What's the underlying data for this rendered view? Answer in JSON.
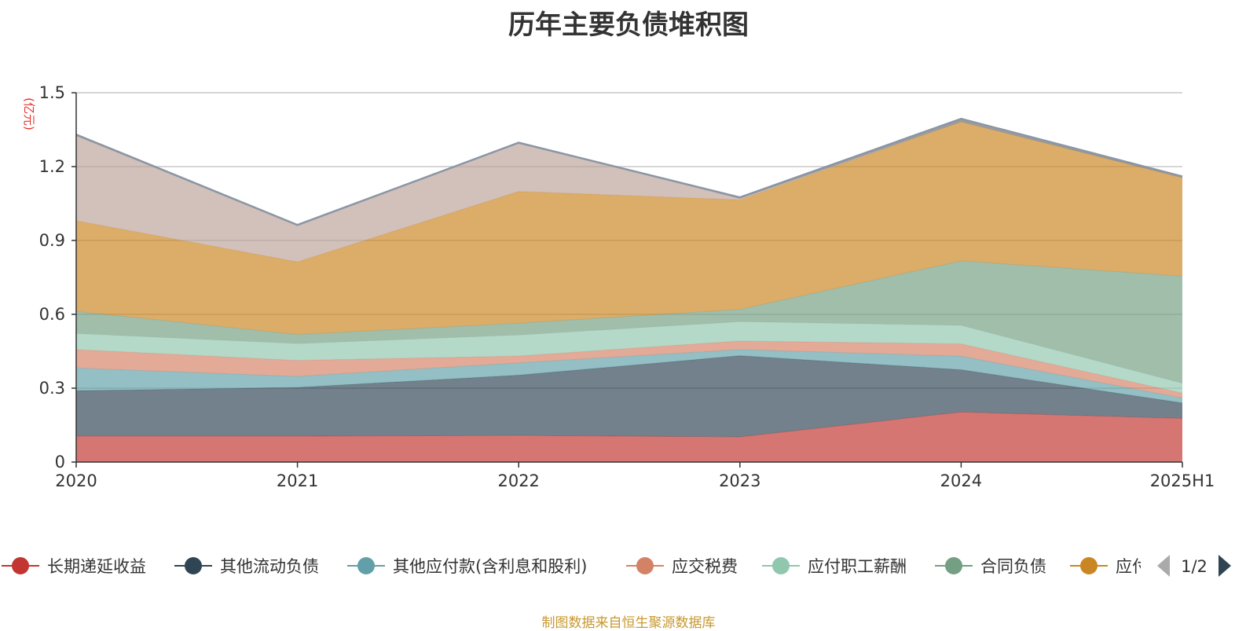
{
  "chart_data": {
    "type": "area",
    "stacked": true,
    "title": "历年主要负债堆积图",
    "unit_label": "(亿元)",
    "categories": [
      "2020",
      "2021",
      "2022",
      "2023",
      "2024",
      "2025H1"
    ],
    "ylim": [
      0,
      1.5
    ],
    "yticks": [
      "0",
      "0.3",
      "0.6",
      "0.9",
      "1.2",
      "1.5"
    ],
    "grid": true,
    "legend_position": "bottom",
    "series": [
      {
        "name": "长期递延收益",
        "color": "#c23531",
        "values": [
          0.105,
          0.105,
          0.108,
          0.102,
          0.203,
          0.177
        ]
      },
      {
        "name": "其他流动负债",
        "color": "#2f4554",
        "values": [
          0.185,
          0.198,
          0.245,
          0.33,
          0.172,
          0.063
        ]
      },
      {
        "name": "其他应付款(含利息和股利)",
        "color": "#61a0a8",
        "values": [
          0.092,
          0.045,
          0.05,
          0.025,
          0.055,
          0.02
        ]
      },
      {
        "name": "应交税费",
        "color": "#d48265",
        "values": [
          0.075,
          0.065,
          0.028,
          0.035,
          0.05,
          0.02
        ]
      },
      {
        "name": "应付职工薪酬",
        "color": "#91c7ae",
        "values": [
          0.065,
          0.068,
          0.085,
          0.078,
          0.075,
          0.04
        ]
      },
      {
        "name": "合同负债",
        "color": "#749f83",
        "values": [
          0.09,
          0.037,
          0.048,
          0.05,
          0.262,
          0.435
        ]
      },
      {
        "name": "应付账款",
        "color": "#ca8622",
        "values": [
          0.368,
          0.295,
          0.535,
          0.445,
          0.565,
          0.4
        ]
      },
      {
        "name": "",
        "color": "#bda29a",
        "values": [
          0.345,
          0.15,
          0.198,
          0.005,
          0.0,
          0.0
        ]
      },
      {
        "name": "",
        "color": "#6e7074",
        "values": [
          0.005,
          0.0,
          0.0,
          0.005,
          0.012,
          0.005
        ]
      }
    ]
  },
  "legend": {
    "items": [
      {
        "label": "长期递延收益",
        "color": "#c23531"
      },
      {
        "label": "其他流动负债",
        "color": "#2f4554"
      },
      {
        "label": "其他应付款(含利息和股利)",
        "color": "#61a0a8"
      },
      {
        "label": "应交税费",
        "color": "#d48265"
      },
      {
        "label": "应付职工薪酬",
        "color": "#91c7ae"
      },
      {
        "label": "合同负债",
        "color": "#749f83"
      },
      {
        "label": "应付",
        "color": "#ca8622"
      }
    ],
    "page_indicator": "1/2"
  },
  "source": "制图数据来自恒生聚源数据库"
}
